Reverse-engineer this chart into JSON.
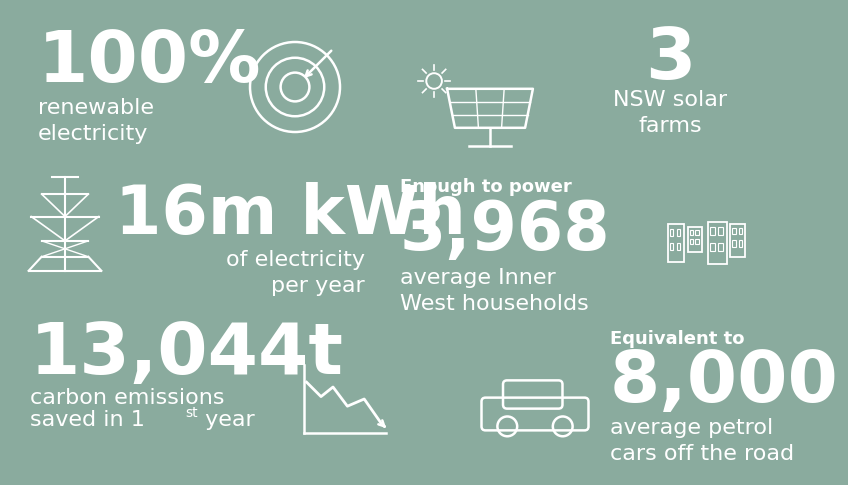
{
  "background_color": "#8aab9e",
  "text_color": "#ffffff",
  "stat1_big": "100%",
  "stat1_sub": "renewable\nelectricity",
  "stat2_big": "3",
  "stat2_sub": "NSW solar\nfarms",
  "stat3_big": "16m kWh",
  "stat3_sub": "of electricity\nper year",
  "stat4_pre": "Enough to power",
  "stat4_big": "3,968",
  "stat4_sub": "average Inner\nWest households",
  "stat5_big": "13,044t",
  "stat5_sub1": "carbon emissions",
  "stat5_sub2": "saved in 1",
  "stat5_sup": "st",
  "stat5_sub3": " year",
  "stat6_pre": "Equivalent to",
  "stat6_big": "8,000",
  "stat6_sub": "average petrol\ncars off the road"
}
